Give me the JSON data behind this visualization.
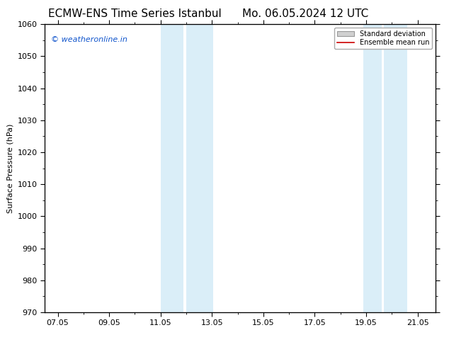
{
  "title_left": "ECMW-ENS Time Series Istanbul",
  "title_right": "Mo. 06.05.2024 12 UTC",
  "ylabel": "Surface Pressure (hPa)",
  "ylim": [
    970,
    1060
  ],
  "yticks": [
    970,
    980,
    990,
    1000,
    1010,
    1020,
    1030,
    1040,
    1050,
    1060
  ],
  "xtick_labels": [
    "07.05",
    "09.05",
    "11.05",
    "13.05",
    "15.05",
    "17.05",
    "19.05",
    "21.05"
  ],
  "xtick_days": [
    7,
    9,
    11,
    13,
    15,
    17,
    19,
    21
  ],
  "x_min": 6.5,
  "x_max": 21.7,
  "shaded_bands": [
    {
      "x_start_day": 11.0,
      "x_end_day": 11.9
    },
    {
      "x_start_day": 12.0,
      "x_end_day": 13.05
    },
    {
      "x_start_day": 18.9,
      "x_end_day": 19.6
    },
    {
      "x_start_day": 19.7,
      "x_end_day": 20.6
    }
  ],
  "shade_color": "#daeef8",
  "watermark_text": "© weatheronline.in",
  "watermark_color": "#1155cc",
  "legend_std_dev_color": "#d0d0d0",
  "legend_mean_run_color": "#cc0000",
  "title_fontsize": 11,
  "ylabel_fontsize": 8,
  "tick_fontsize": 8,
  "watermark_fontsize": 8,
  "legend_fontsize": 7,
  "background_color": "#ffffff"
}
